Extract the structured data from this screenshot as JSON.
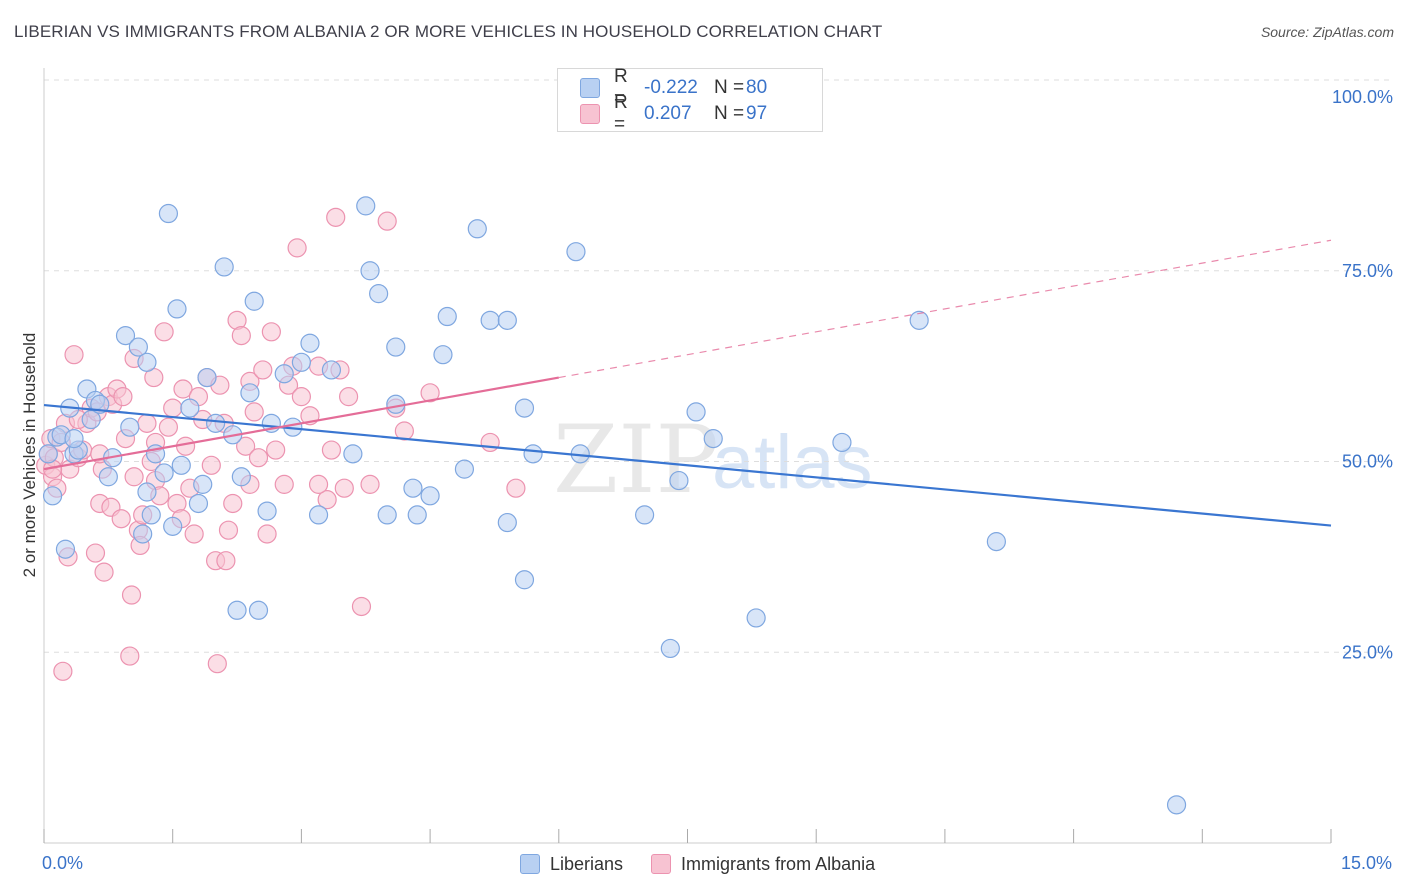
{
  "header": {
    "title": "LIBERIAN VS IMMIGRANTS FROM ALBANIA 2 OR MORE VEHICLES IN HOUSEHOLD CORRELATION CHART",
    "source": "Source: ZipAtlas.com"
  },
  "watermark": "ZIPatlas",
  "legend_top": {
    "rows": [
      {
        "r_label": "R =",
        "r_value": "-0.222",
        "n_label": "N =",
        "n_value": "80",
        "color": "#b8d0f2"
      },
      {
        "r_label": "R =",
        "r_value": "0.207",
        "n_label": "N =",
        "n_value": "97",
        "color": "#f7c3d2"
      }
    ]
  },
  "legend_bottom": [
    "Liberians",
    "Immigrants from Albania"
  ],
  "colors": {
    "blue_fill": "#b8d0f2",
    "blue_stroke": "#7fa7e0",
    "blue_line": "#3a76d1",
    "pink_fill": "#f7c3d2",
    "pink_stroke": "#ec93b0",
    "pink_line": "#e46d98",
    "axis_text": "#3a73c9",
    "grid": "#dddddd"
  },
  "chart_data": {
    "type": "scatter",
    "title": "LIBERIAN VS IMMIGRANTS FROM ALBANIA 2 OR MORE VEHICLES IN HOUSEHOLD CORRELATION CHART",
    "xlabel": "",
    "ylabel": "2 or more Vehicles in Household",
    "xlim": [
      0,
      15
    ],
    "ylim": [
      0,
      100
    ],
    "x_tick_labels": [
      "0.0%",
      "15.0%"
    ],
    "y_tick_values": [
      25,
      50,
      75,
      100
    ],
    "y_tick_labels": [
      "25.0%",
      "50.0%",
      "75.0%",
      "100.0%"
    ],
    "grid": true,
    "legend_position": "bottom",
    "series": [
      {
        "name": "Liberians",
        "r": -0.222,
        "n": 80,
        "trend": {
          "x": [
            0,
            15
          ],
          "y": [
            57.4,
            41.6
          ],
          "solid_to": 15
        },
        "points": [
          [
            0.1,
            45.5
          ],
          [
            0.15,
            53.2
          ],
          [
            0.2,
            53.5
          ],
          [
            0.25,
            38.5
          ],
          [
            0.3,
            57.0
          ],
          [
            0.35,
            51.0
          ],
          [
            0.4,
            51.5
          ],
          [
            0.5,
            59.5
          ],
          [
            0.55,
            55.5
          ],
          [
            0.6,
            58.0
          ],
          [
            0.65,
            57.5
          ],
          [
            0.75,
            48.0
          ],
          [
            0.8,
            50.5
          ],
          [
            0.95,
            66.5
          ],
          [
            1.0,
            54.5
          ],
          [
            1.1,
            65.0
          ],
          [
            1.15,
            40.5
          ],
          [
            1.2,
            63.0
          ],
          [
            1.25,
            43.0
          ],
          [
            1.3,
            51.0
          ],
          [
            1.4,
            48.5
          ],
          [
            1.45,
            82.5
          ],
          [
            1.5,
            41.5
          ],
          [
            1.55,
            70.0
          ],
          [
            1.6,
            49.5
          ],
          [
            1.7,
            57.0
          ],
          [
            1.8,
            44.5
          ],
          [
            1.85,
            47.0
          ],
          [
            1.9,
            61.0
          ],
          [
            2.0,
            55.0
          ],
          [
            2.1,
            75.5
          ],
          [
            2.2,
            53.5
          ],
          [
            2.25,
            30.5
          ],
          [
            2.3,
            48.0
          ],
          [
            2.4,
            59.0
          ],
          [
            2.45,
            71.0
          ],
          [
            2.5,
            30.5
          ],
          [
            2.6,
            43.5
          ],
          [
            2.65,
            55.0
          ],
          [
            2.8,
            61.5
          ],
          [
            2.9,
            54.5
          ],
          [
            3.0,
            63.0
          ],
          [
            3.1,
            65.5
          ],
          [
            3.2,
            43.0
          ],
          [
            3.35,
            62.0
          ],
          [
            3.6,
            51.0
          ],
          [
            3.75,
            83.5
          ],
          [
            3.8,
            75.0
          ],
          [
            3.9,
            72.0
          ],
          [
            4.0,
            43.0
          ],
          [
            4.1,
            57.5
          ],
          [
            4.1,
            65.0
          ],
          [
            4.3,
            46.5
          ],
          [
            4.35,
            43.0
          ],
          [
            4.5,
            45.5
          ],
          [
            4.65,
            64.0
          ],
          [
            4.7,
            69.0
          ],
          [
            5.05,
            80.5
          ],
          [
            5.2,
            68.5
          ],
          [
            5.4,
            42.0
          ],
          [
            5.4,
            68.5
          ],
          [
            5.6,
            34.5
          ],
          [
            5.6,
            57.0
          ],
          [
            5.7,
            51.0
          ],
          [
            6.2,
            77.5
          ],
          [
            6.25,
            51.0
          ],
          [
            7.0,
            43.0
          ],
          [
            7.3,
            25.5
          ],
          [
            7.4,
            47.5
          ],
          [
            7.6,
            56.5
          ],
          [
            7.8,
            53.0
          ],
          [
            8.3,
            29.5
          ],
          [
            9.3,
            52.5
          ],
          [
            10.2,
            68.5
          ],
          [
            11.1,
            39.5
          ],
          [
            13.2,
            5.0
          ],
          [
            0.05,
            51.0
          ],
          [
            0.35,
            53.0
          ],
          [
            1.2,
            46.0
          ],
          [
            4.9,
            49.0
          ]
        ]
      },
      {
        "name": "Immigrants from Albania",
        "r": 0.207,
        "n": 97,
        "trend": {
          "x": [
            0,
            15
          ],
          "y": [
            49.0,
            79.0
          ],
          "solid_to": 6.0
        },
        "points": [
          [
            0.02,
            49.5
          ],
          [
            0.05,
            51.0
          ],
          [
            0.08,
            53.0
          ],
          [
            0.1,
            48.0
          ],
          [
            0.12,
            50.5
          ],
          [
            0.15,
            46.5
          ],
          [
            0.2,
            52.5
          ],
          [
            0.22,
            22.5
          ],
          [
            0.25,
            55.0
          ],
          [
            0.28,
            37.5
          ],
          [
            0.3,
            49.0
          ],
          [
            0.35,
            64.0
          ],
          [
            0.4,
            50.5
          ],
          [
            0.45,
            51.5
          ],
          [
            0.5,
            55.0
          ],
          [
            0.55,
            57.0
          ],
          [
            0.6,
            38.0
          ],
          [
            0.62,
            56.5
          ],
          [
            0.65,
            44.5
          ],
          [
            0.68,
            49.0
          ],
          [
            0.7,
            35.5
          ],
          [
            0.75,
            58.5
          ],
          [
            0.78,
            44.0
          ],
          [
            0.8,
            57.5
          ],
          [
            0.85,
            59.5
          ],
          [
            0.9,
            42.5
          ],
          [
            0.92,
            58.5
          ],
          [
            0.95,
            53.0
          ],
          [
            1.0,
            24.5
          ],
          [
            1.02,
            32.5
          ],
          [
            1.05,
            63.5
          ],
          [
            1.1,
            41.0
          ],
          [
            1.12,
            39.0
          ],
          [
            1.15,
            43.0
          ],
          [
            1.2,
            55.0
          ],
          [
            1.25,
            50.0
          ],
          [
            1.28,
            61.0
          ],
          [
            1.3,
            47.5
          ],
          [
            1.35,
            45.5
          ],
          [
            1.4,
            67.0
          ],
          [
            1.45,
            54.5
          ],
          [
            1.5,
            57.0
          ],
          [
            1.55,
            44.5
          ],
          [
            1.6,
            42.5
          ],
          [
            1.62,
            59.5
          ],
          [
            1.65,
            52.0
          ],
          [
            1.7,
            46.5
          ],
          [
            1.75,
            40.5
          ],
          [
            1.8,
            58.5
          ],
          [
            1.85,
            55.5
          ],
          [
            1.9,
            61.0
          ],
          [
            1.95,
            49.5
          ],
          [
            2.0,
            37.0
          ],
          [
            2.02,
            23.5
          ],
          [
            2.05,
            60.0
          ],
          [
            2.1,
            55.0
          ],
          [
            2.12,
            37.0
          ],
          [
            2.15,
            41.0
          ],
          [
            2.2,
            44.5
          ],
          [
            2.25,
            68.5
          ],
          [
            2.3,
            66.5
          ],
          [
            2.35,
            52.0
          ],
          [
            2.4,
            60.5
          ],
          [
            2.45,
            56.5
          ],
          [
            2.5,
            50.5
          ],
          [
            2.55,
            62.0
          ],
          [
            2.6,
            40.5
          ],
          [
            2.65,
            67.0
          ],
          [
            2.7,
            51.5
          ],
          [
            2.8,
            47.0
          ],
          [
            2.85,
            60.0
          ],
          [
            2.9,
            62.5
          ],
          [
            2.95,
            78.0
          ],
          [
            3.0,
            58.5
          ],
          [
            3.1,
            56.0
          ],
          [
            3.2,
            62.5
          ],
          [
            3.3,
            45.0
          ],
          [
            3.35,
            51.5
          ],
          [
            3.4,
            82.0
          ],
          [
            3.45,
            62.0
          ],
          [
            3.5,
            46.5
          ],
          [
            3.55,
            58.5
          ],
          [
            3.7,
            31.0
          ],
          [
            3.8,
            47.0
          ],
          [
            4.0,
            81.5
          ],
          [
            4.1,
            57.0
          ],
          [
            4.2,
            54.0
          ],
          [
            4.5,
            59.0
          ],
          [
            5.2,
            52.5
          ],
          [
            5.5,
            46.5
          ],
          [
            0.1,
            49.0
          ],
          [
            0.4,
            55.5
          ],
          [
            1.3,
            52.5
          ],
          [
            2.4,
            47.0
          ],
          [
            3.2,
            47.0
          ],
          [
            0.65,
            51.0
          ],
          [
            1.05,
            48.0
          ]
        ]
      }
    ]
  }
}
